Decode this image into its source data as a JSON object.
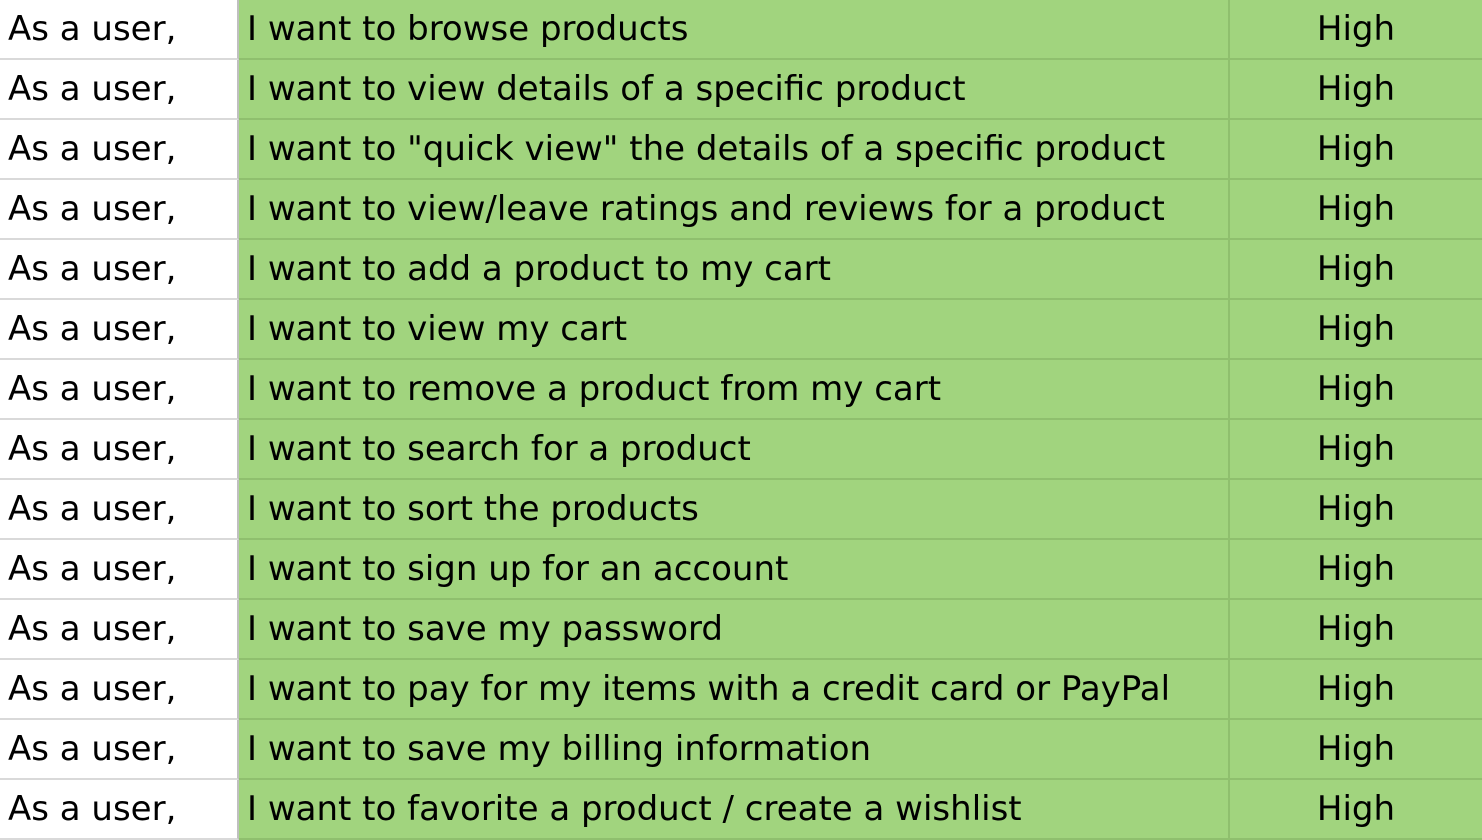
{
  "colors": {
    "story_fill": "#a1d47e",
    "priority_fill": "#a1d47e",
    "role_fill": "#ffffff"
  },
  "rows": [
    {
      "role": "As a user,",
      "story": "I want to browse products",
      "priority": "High"
    },
    {
      "role": "As a user,",
      "story": "I want to view details of a specific product",
      "priority": "High"
    },
    {
      "role": "As a user,",
      "story": "I want to \"quick view\" the details of a specific product",
      "priority": "High"
    },
    {
      "role": "As a user,",
      "story": "I want to view/leave ratings and reviews for a product",
      "priority": "High"
    },
    {
      "role": "As a user,",
      "story": "I want to add a product to my cart",
      "priority": "High"
    },
    {
      "role": "As a user,",
      "story": "I want to view my cart",
      "priority": "High"
    },
    {
      "role": "As a user,",
      "story": "I want to remove a product from my cart",
      "priority": "High"
    },
    {
      "role": "As a user,",
      "story": "I want to search for a product",
      "priority": "High"
    },
    {
      "role": "As a user,",
      "story": "I want to sort the products",
      "priority": "High"
    },
    {
      "role": "As a user,",
      "story": "I want to sign up for an account",
      "priority": "High"
    },
    {
      "role": "As a user,",
      "story": "I want to save my password",
      "priority": "High"
    },
    {
      "role": "As a user,",
      "story": "I want to pay for my items with a credit card or PayPal",
      "priority": "High"
    },
    {
      "role": "As a user,",
      "story": "I want to save my billing information",
      "priority": "High"
    },
    {
      "role": "As a user,",
      "story": "I want to favorite a product / create a wishlist",
      "priority": "High"
    }
  ]
}
